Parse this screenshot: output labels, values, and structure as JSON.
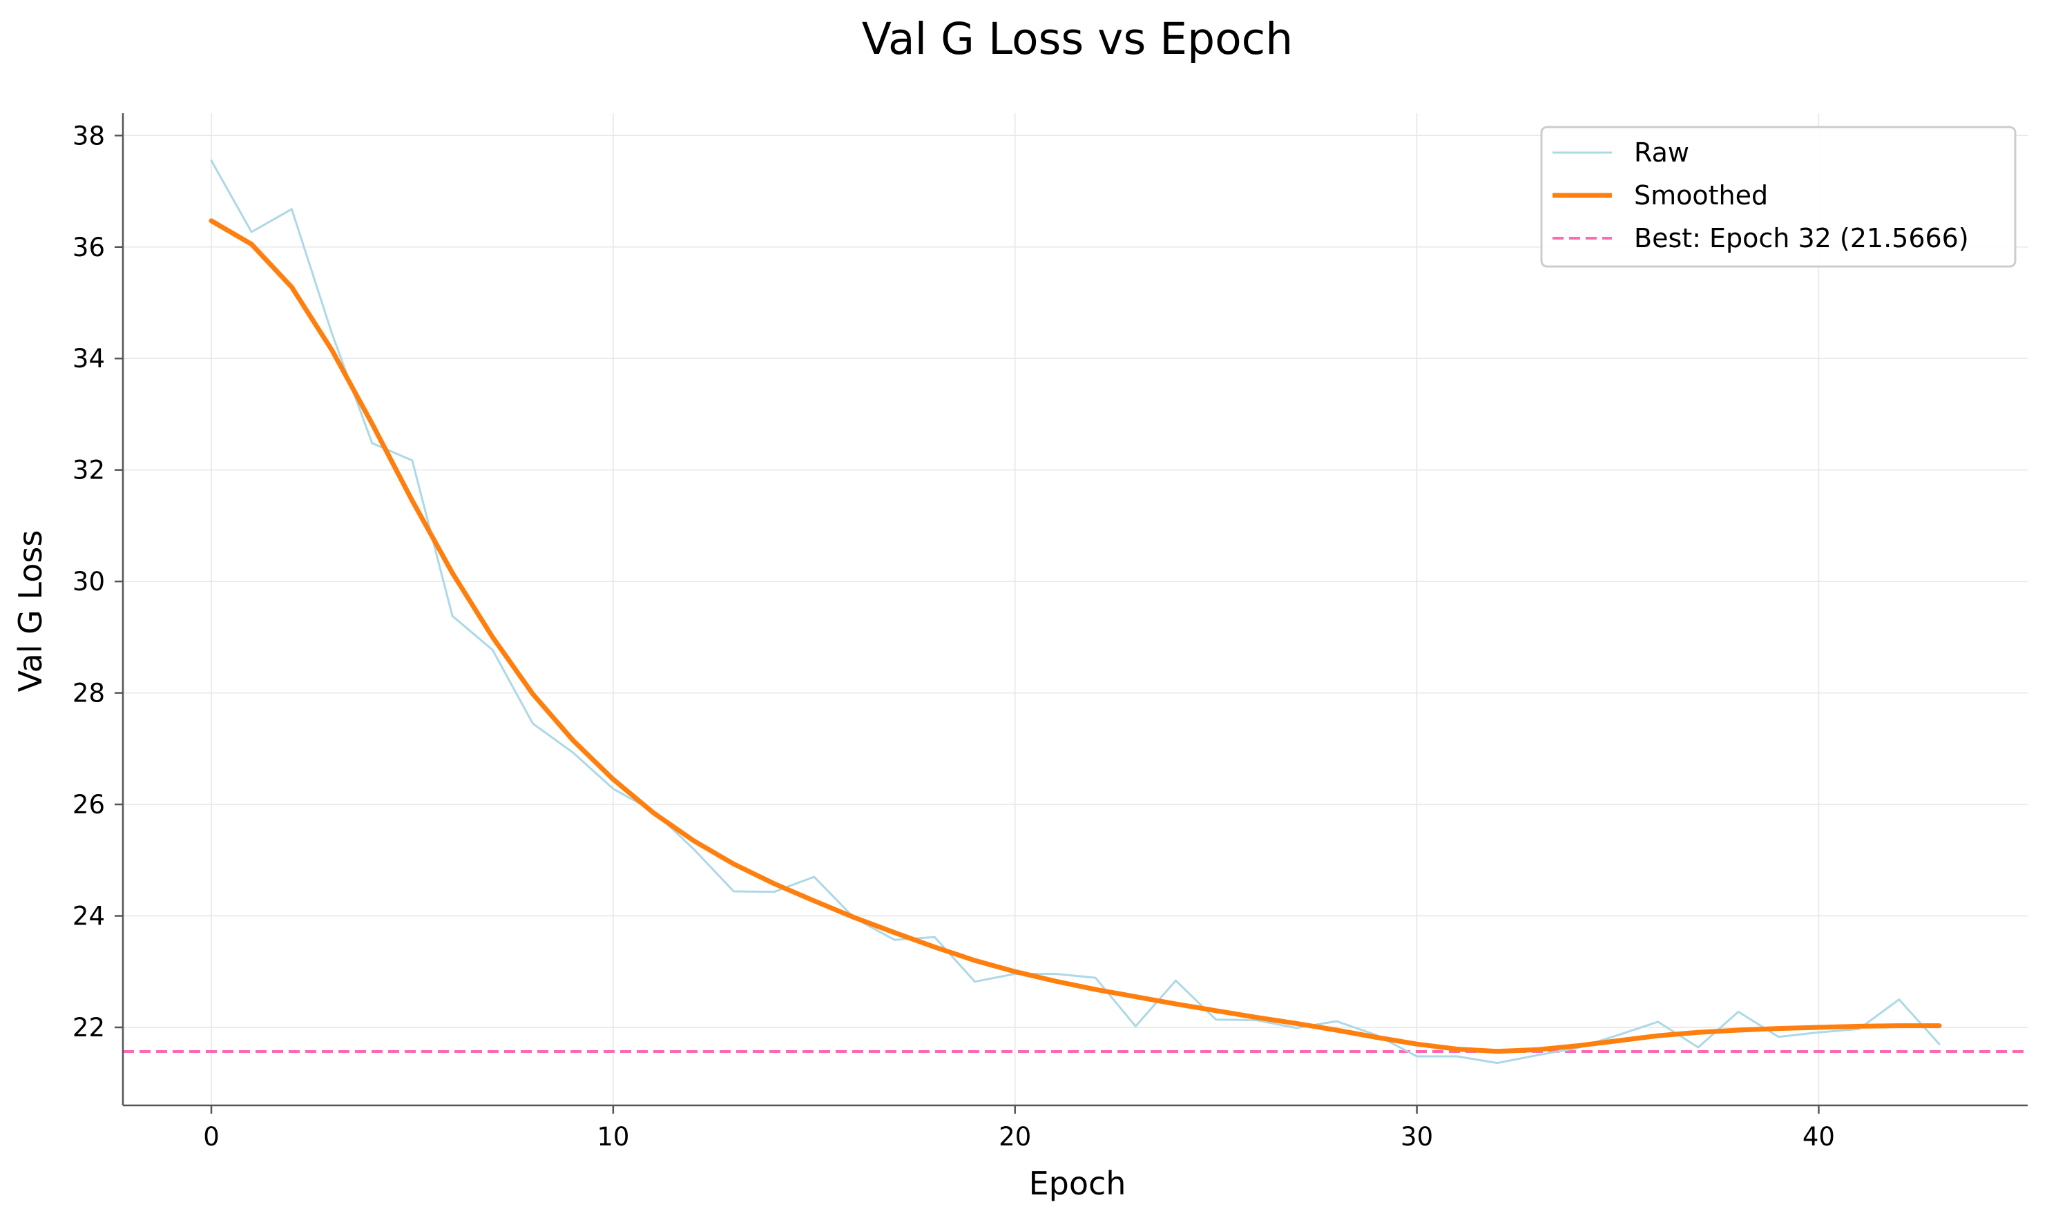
{
  "chart_data": {
    "type": "line",
    "title": "Val G Loss vs Epoch",
    "xlabel": "Epoch",
    "ylabel": "Val G Loss",
    "xlim": [
      -2.2,
      45.2
    ],
    "ylim": [
      20.6,
      38.4
    ],
    "x_ticks": [
      0,
      10,
      20,
      30,
      40
    ],
    "y_ticks": [
      22,
      24,
      26,
      28,
      30,
      32,
      34,
      36,
      38
    ],
    "grid": true,
    "legend_position": "top-right",
    "x": [
      0,
      1,
      2,
      3,
      4,
      5,
      6,
      7,
      8,
      9,
      10,
      11,
      12,
      13,
      14,
      15,
      16,
      17,
      18,
      19,
      20,
      21,
      22,
      23,
      24,
      25,
      26,
      27,
      28,
      29,
      30,
      31,
      32,
      33,
      34,
      35,
      36,
      37,
      38,
      39,
      40,
      41,
      42,
      43
    ],
    "series": [
      {
        "name": "Raw",
        "color": "#add8e6",
        "values": [
          37.55,
          36.27,
          36.68,
          34.45,
          32.48,
          32.17,
          29.38,
          28.77,
          27.45,
          26.93,
          26.28,
          25.88,
          25.2,
          24.44,
          24.43,
          24.7,
          23.96,
          23.57,
          23.62,
          22.82,
          22.96,
          22.96,
          22.89,
          22.02,
          22.84,
          22.14,
          22.13,
          21.99,
          22.11,
          21.86,
          21.48,
          21.48,
          21.36,
          21.5,
          21.63,
          21.86,
          22.1,
          21.64,
          22.28,
          21.83,
          21.91,
          21.97,
          22.5,
          21.7
        ]
      },
      {
        "name": "Smoothed",
        "color": "#ff7f0e",
        "values": [
          36.47,
          36.05,
          35.28,
          34.15,
          32.83,
          31.45,
          30.15,
          29.0,
          27.98,
          27.15,
          26.45,
          25.85,
          25.35,
          24.93,
          24.58,
          24.27,
          23.97,
          23.7,
          23.44,
          23.2,
          23.0,
          22.83,
          22.68,
          22.55,
          22.42,
          22.3,
          22.18,
          22.07,
          21.95,
          21.82,
          21.7,
          21.61,
          21.57,
          21.6,
          21.67,
          21.76,
          21.85,
          21.91,
          21.95,
          21.98,
          22.0,
          22.02,
          22.03,
          22.03
        ]
      }
    ],
    "reference_line": {
      "name": "Best: Epoch 32 (21.5666)",
      "value": 21.5666,
      "color": "#ff69b4",
      "style": "dashed"
    }
  }
}
